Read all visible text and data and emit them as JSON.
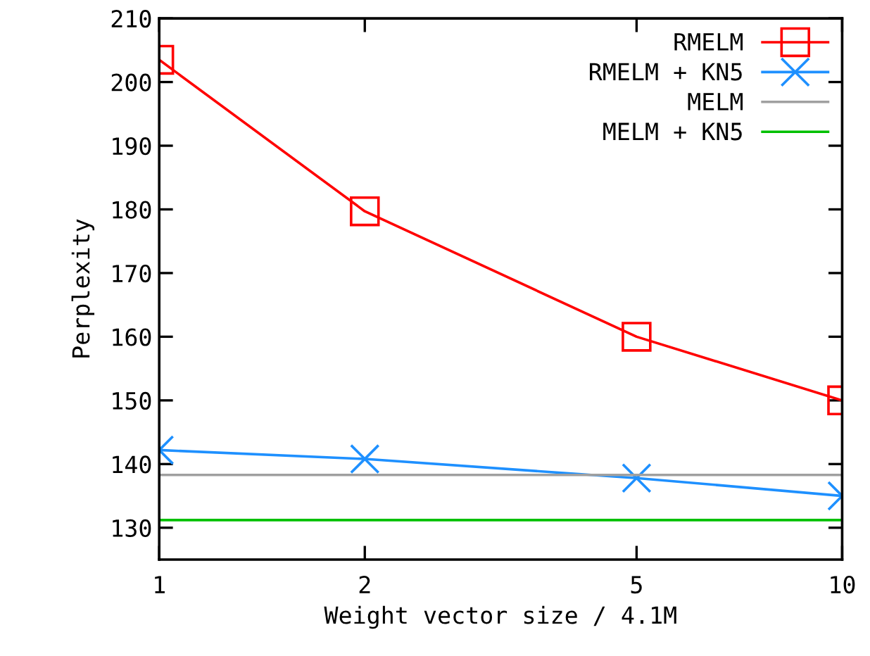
{
  "chart_data": {
    "type": "line",
    "xlabel": "Weight vector size / 4.1M",
    "ylabel": "Perplexity",
    "x": [
      1,
      2,
      5,
      10
    ],
    "log": "x",
    "xlim": [
      1,
      10
    ],
    "xticks": [
      1,
      2,
      5,
      10
    ],
    "ylim": [
      125,
      210
    ],
    "yticks": [
      130,
      140,
      150,
      160,
      170,
      180,
      190,
      200,
      210
    ],
    "grid": false,
    "legend": "top right",
    "series": [
      {
        "name": "RMELM",
        "color": "#ff0000",
        "marker": "square",
        "values": [
          203.5,
          179.7,
          160,
          150
        ]
      },
      {
        "name": "RMELM + KN5",
        "color": "#1e90ff",
        "marker": "cross",
        "values": [
          142.2,
          140.8,
          137.8,
          135.0
        ]
      }
    ],
    "ref_lines": [
      {
        "axis": "y",
        "value": 138.3,
        "label": "MELM",
        "color": "#a0a0a0"
      },
      {
        "axis": "y",
        "value": 131.2,
        "label": "MELM + KN5",
        "color": "#00c000"
      }
    ]
  }
}
